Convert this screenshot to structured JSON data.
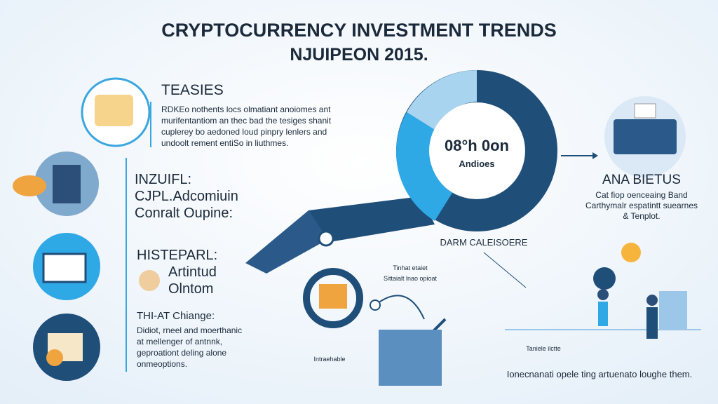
{
  "header": {
    "title": "CRYPTOCURRENCY INVESTMENT TRENDS",
    "subtitle": "NJUIPEON 2015."
  },
  "section_1": {
    "heading": "TEASIES",
    "lines": [
      "RDKEo nothents locs olmatiant anoiomes ant",
      "murifentantiom an thec bad the tesiges shanit",
      "cuplerey bo aedoned loud pinpry lenlers and",
      "undoolt rement entiSo in liuthmes."
    ]
  },
  "section_2": {
    "lines": [
      "INZUIFL:",
      "CJPL.Adcomiuin",
      "Conralt Oupine:"
    ]
  },
  "section_3": {
    "lines": [
      "HISTEPARL:",
      "Artintud",
      "Olntom"
    ]
  },
  "section_4": {
    "heading": "THI-AT Chiange:",
    "lines": [
      "Didiot, rneel and moerthanic",
      "at mellenger of antnnk,",
      "geproationt deling alone",
      "onmeoptions."
    ]
  },
  "donut": {
    "center_title": "08°h 0on",
    "center_sub": "Andioes"
  },
  "right_panel": {
    "heading": "ANA BIETUS",
    "lines": [
      "Cat fiop oenceaing Band",
      "Carthymalr espatintt suearnes",
      "& Tenplot."
    ]
  },
  "labels": {
    "middle": "DARM CALEISOERE",
    "small_1": "Tinhat etaiet",
    "small_2": "Sittaialt lnao opioat",
    "small_3": "Intraehable",
    "small_4": "Taniele ilctte"
  },
  "footer": {
    "text": "Ionecnanati opele ting artuenato loughe them."
  }
}
